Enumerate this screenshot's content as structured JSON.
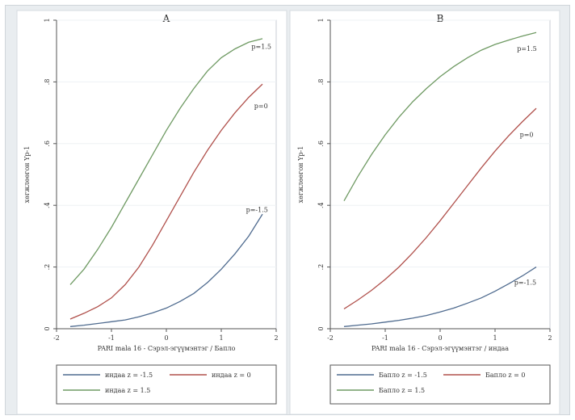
{
  "chart_data": [
    {
      "type": "line",
      "title": "A",
      "xlabel": "PARI mala 16 - Сэрэл-эгүүмэнтэг / Бапло",
      "ylabel": "хөгжлөөгон Үр-1",
      "xlim": [
        -2,
        2
      ],
      "ylim": [
        0,
        7
      ],
      "x_ticks": [
        "-2",
        "-1",
        "0",
        "1",
        "2"
      ],
      "y_ticks": [
        "0",
        ".2",
        ".4",
        ".6",
        ".8",
        "1"
      ],
      "series": [
        {
          "name": "индаа z = -1.5",
          "color": "#4f6b8f",
          "x": [
            -1.75,
            -1.5,
            -1.25,
            -1,
            -0.75,
            -0.5,
            -0.25,
            0,
            0.25,
            0.5,
            0.75,
            1,
            1.25,
            1.5,
            1.75
          ],
          "y": [
            0.05,
            0.08,
            0.12,
            0.16,
            0.2,
            0.27,
            0.36,
            0.47,
            0.62,
            0.8,
            1.05,
            1.35,
            1.7,
            2.1,
            2.6
          ]
        },
        {
          "name": "индаа z = 0",
          "color": "#b0504b",
          "x": [
            -1.75,
            -1.5,
            -1.25,
            -1,
            -0.75,
            -0.5,
            -0.25,
            0,
            0.25,
            0.5,
            0.75,
            1,
            1.25,
            1.5,
            1.75
          ],
          "y": [
            0.22,
            0.35,
            0.5,
            0.7,
            1.0,
            1.4,
            1.9,
            2.45,
            3.0,
            3.55,
            4.05,
            4.5,
            4.9,
            5.25,
            5.55
          ]
        },
        {
          "name": "индаа z = 1.5",
          "color": "#6f9a63",
          "x": [
            -1.75,
            -1.5,
            -1.25,
            -1,
            -0.75,
            -0.5,
            -0.25,
            0,
            0.25,
            0.5,
            0.75,
            1,
            1.25,
            1.5,
            1.75
          ],
          "y": [
            1.0,
            1.35,
            1.8,
            2.3,
            2.85,
            3.4,
            3.95,
            4.5,
            5.0,
            5.45,
            5.85,
            6.15,
            6.35,
            6.5,
            6.58
          ]
        }
      ],
      "annotations": [
        {
          "text": "p=1.5",
          "x": 1.55,
          "y": 6.35
        },
        {
          "text": "p=0",
          "x": 1.6,
          "y": 5.0
        },
        {
          "text": "p=-1.5",
          "x": 1.45,
          "y": 2.65
        }
      ],
      "legend": {
        "placement": "bottom",
        "entries": [
          "индаа z = -1.5",
          "индаа z = 0",
          "индаа z = 1.5"
        ]
      }
    },
    {
      "type": "line",
      "title": "B",
      "xlabel": "PARI mala 16 - Сэрэл-эгүүмэнтэг / индаа",
      "ylabel": "хөгжлөөгон Үр-1",
      "xlim": [
        -2,
        2
      ],
      "ylim": [
        0,
        7
      ],
      "x_ticks": [
        "-2",
        "-1",
        "0",
        "1",
        "2"
      ],
      "y_ticks": [
        "0",
        ".2",
        ".4",
        ".6",
        ".8",
        "1"
      ],
      "series": [
        {
          "name": "Бапло z = -1.5",
          "color": "#4f6b8f",
          "x": [
            -1.75,
            -1.5,
            -1.25,
            -1,
            -0.75,
            -0.5,
            -0.25,
            0,
            0.25,
            0.5,
            0.75,
            1,
            1.25,
            1.5,
            1.75
          ],
          "y": [
            0.05,
            0.08,
            0.11,
            0.15,
            0.19,
            0.24,
            0.3,
            0.38,
            0.47,
            0.58,
            0.7,
            0.85,
            1.02,
            1.2,
            1.4
          ]
        },
        {
          "name": "Бапло z = 0",
          "color": "#b0504b",
          "x": [
            -1.75,
            -1.5,
            -1.25,
            -1,
            -0.75,
            -0.5,
            -0.25,
            0,
            0.25,
            0.5,
            0.75,
            1,
            1.25,
            1.5,
            1.75
          ],
          "y": [
            0.45,
            0.65,
            0.87,
            1.12,
            1.4,
            1.72,
            2.07,
            2.45,
            2.85,
            3.25,
            3.65,
            4.03,
            4.38,
            4.7,
            5.0
          ]
        },
        {
          "name": "Бапло z = 1.5",
          "color": "#6f9a63",
          "x": [
            -1.75,
            -1.5,
            -1.25,
            -1,
            -0.75,
            -0.5,
            -0.25,
            0,
            0.25,
            0.5,
            0.75,
            1,
            1.25,
            1.5,
            1.75
          ],
          "y": [
            2.9,
            3.45,
            3.95,
            4.4,
            4.8,
            5.15,
            5.45,
            5.72,
            5.95,
            6.15,
            6.32,
            6.45,
            6.55,
            6.64,
            6.72
          ]
        }
      ],
      "annotations": [
        {
          "text": "p=1.5",
          "x": 1.4,
          "y": 6.3
        },
        {
          "text": "p=0",
          "x": 1.45,
          "y": 4.35
        },
        {
          "text": "p=-1.5",
          "x": 1.35,
          "y": 1.0
        }
      ],
      "legend": {
        "placement": "bottom",
        "entries": [
          "Бапло z = -1.5",
          "Бапло z = 0",
          "Бапло z = 1.5"
        ]
      }
    }
  ]
}
